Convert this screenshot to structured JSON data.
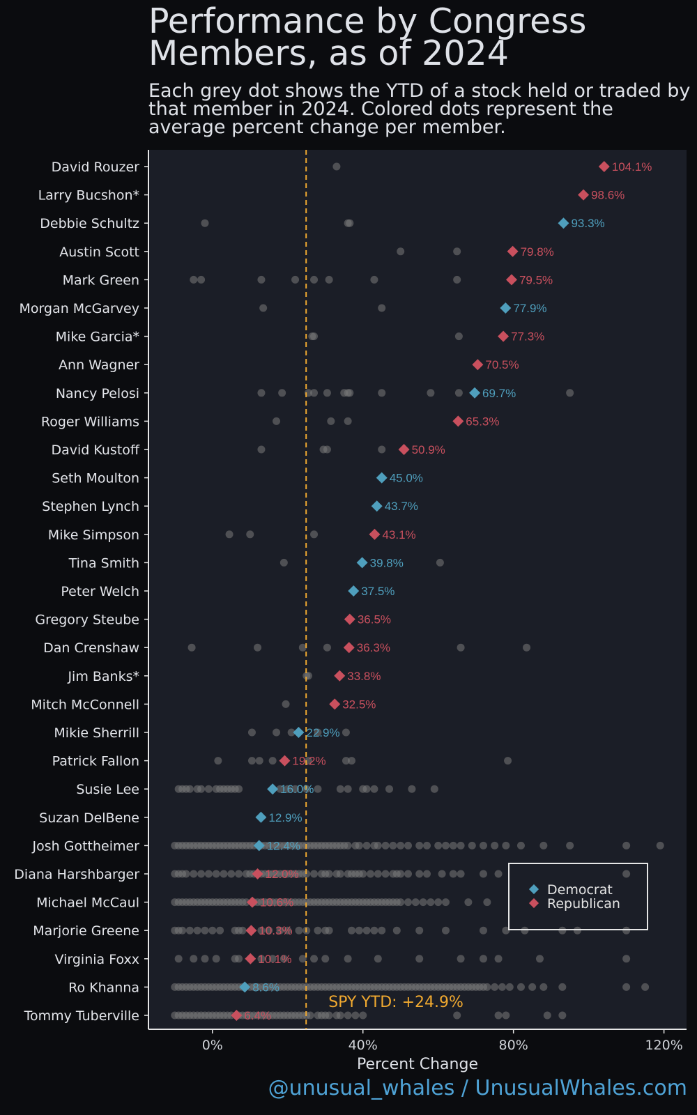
{
  "title": "Performance by Congress Members, as of 2024",
  "subtitle": "Each grey dot shows the YTD of a stock held or traded by that member in 2024. Colored dots represent the average percent change per member.",
  "footer": "@unusual_whales / UnusualWhales.com",
  "colors": {
    "democrat": "#4f9fbd",
    "republican": "#c9505e",
    "spy_line": "#f0a930",
    "stock_dot": "#7a7a7a",
    "panel": "#1b1e27",
    "background": "#0b0c0f"
  },
  "legend": {
    "items": [
      {
        "label": "Democrat",
        "color": "#4f9fbd"
      },
      {
        "label": "Republican",
        "color": "#c9505e"
      }
    ],
    "placement": "bottom-right"
  },
  "chart_data": {
    "type": "scatter",
    "xlabel": "Percent Change",
    "xlim": [
      -17,
      126
    ],
    "xticks": [
      0,
      40,
      80,
      120
    ],
    "xtick_labels": [
      "0%",
      "40%",
      "80%",
      "120%"
    ],
    "reference_line": {
      "value": 24.9,
      "label": "SPY YTD: +24.9%"
    },
    "members": [
      {
        "name": "David Rouzer",
        "party": "Republican",
        "avg": 104.1,
        "label": "104.1%",
        "stocks": [
          33
        ]
      },
      {
        "name": "Larry Bucshon*",
        "party": "Republican",
        "avg": 98.6,
        "label": "98.6%",
        "stocks": []
      },
      {
        "name": "Debbie Schultz",
        "party": "Democrat",
        "avg": 93.3,
        "label": "93.3%",
        "stocks": [
          -2,
          36,
          36.5
        ]
      },
      {
        "name": "Austin Scott",
        "party": "Republican",
        "avg": 79.8,
        "label": "79.8%",
        "stocks": [
          50,
          65
        ]
      },
      {
        "name": "Mark Green",
        "party": "Republican",
        "avg": 79.5,
        "label": "79.5%",
        "stocks": [
          -5,
          -3,
          13,
          22,
          27,
          31,
          43,
          65
        ]
      },
      {
        "name": "Morgan McGarvey",
        "party": "Democrat",
        "avg": 77.9,
        "label": "77.9%",
        "stocks": [
          13.5,
          45
        ]
      },
      {
        "name": "Mike Garcia*",
        "party": "Republican",
        "avg": 77.3,
        "label": "77.3%",
        "stocks": [
          26.5,
          27,
          65.5
        ]
      },
      {
        "name": "Ann Wagner",
        "party": "Republican",
        "avg": 70.5,
        "label": "70.5%",
        "stocks": []
      },
      {
        "name": "Nancy Pelosi",
        "party": "Democrat",
        "avg": 69.7,
        "label": "69.7%",
        "stocks": [
          13,
          18.5,
          25.5,
          27,
          30.5,
          35,
          36,
          36.5,
          45,
          58,
          65.5,
          95
        ]
      },
      {
        "name": "Roger Williams",
        "party": "Republican",
        "avg": 65.3,
        "label": "65.3%",
        "stocks": [
          17,
          31.5,
          36
        ]
      },
      {
        "name": "David Kustoff",
        "party": "Republican",
        "avg": 50.9,
        "label": "50.9%",
        "stocks": [
          13,
          29.5,
          30.5,
          45
        ]
      },
      {
        "name": "Seth Moulton",
        "party": "Democrat",
        "avg": 45.0,
        "label": "45.0%",
        "stocks": []
      },
      {
        "name": "Stephen Lynch",
        "party": "Democrat",
        "avg": 43.7,
        "label": "43.7%",
        "stocks": []
      },
      {
        "name": "Mike Simpson",
        "party": "Republican",
        "avg": 43.1,
        "label": "43.1%",
        "stocks": [
          4.5,
          10,
          27
        ]
      },
      {
        "name": "Tina Smith",
        "party": "Democrat",
        "avg": 39.8,
        "label": "39.8%",
        "stocks": [
          19,
          60.5
        ]
      },
      {
        "name": "Peter Welch",
        "party": "Democrat",
        "avg": 37.5,
        "label": "37.5%",
        "stocks": []
      },
      {
        "name": "Gregory Steube",
        "party": "Republican",
        "avg": 36.5,
        "label": "36.5%",
        "stocks": []
      },
      {
        "name": "Dan Crenshaw",
        "party": "Republican",
        "avg": 36.3,
        "label": "36.3%",
        "stocks": [
          -5.5,
          12,
          24,
          30.5,
          66,
          83.5
        ]
      },
      {
        "name": "Jim Banks*",
        "party": "Republican",
        "avg": 33.8,
        "label": "33.8%",
        "stocks": [
          25,
          25.5
        ]
      },
      {
        "name": "Mitch McConnell",
        "party": "Republican",
        "avg": 32.5,
        "label": "32.5%",
        "stocks": [
          19.5
        ]
      },
      {
        "name": "Mikie Sherrill",
        "party": "Democrat",
        "avg": 22.9,
        "label": "22.9%",
        "stocks": [
          10.5,
          17,
          21,
          28,
          35.5
        ]
      },
      {
        "name": "Patrick Fallon",
        "party": "Republican",
        "avg": 19.2,
        "label": "19.2%",
        "stocks": [
          1.5,
          10.5,
          12.5,
          16,
          25.5,
          35.5,
          37,
          78.5
        ]
      },
      {
        "name": "Susie Lee",
        "party": "Democrat",
        "avg": 16.0,
        "label": "16.0%",
        "stocks": [
          -9,
          -8,
          -7,
          -6,
          -4,
          -3,
          -1,
          1,
          2,
          3,
          4,
          5,
          6,
          7,
          16,
          18,
          20,
          22,
          25,
          28,
          34,
          36,
          40,
          41,
          43,
          47,
          53,
          59
        ]
      },
      {
        "name": "Suzan DelBene",
        "party": "Democrat",
        "avg": 12.9,
        "label": "12.9%",
        "stocks": []
      },
      {
        "name": "Josh Gottheimer",
        "party": "Democrat",
        "avg": 12.4,
        "label": "12.4%",
        "stocks": [
          -10,
          -9,
          -8,
          -7,
          -6,
          -5,
          -4,
          -3,
          -2,
          -1,
          0,
          1,
          2,
          3,
          4,
          5,
          6,
          7,
          8,
          9,
          10,
          11,
          13,
          14,
          15,
          16,
          17,
          18,
          19,
          20,
          21,
          22,
          23,
          24,
          25,
          26,
          27,
          28,
          29,
          30,
          31,
          32,
          33,
          34,
          35,
          36,
          38,
          39,
          41,
          43,
          44,
          46,
          48,
          50,
          52,
          55,
          57,
          60,
          62,
          64,
          66,
          69,
          72,
          75,
          78,
          82,
          88,
          95,
          110,
          119
        ]
      },
      {
        "name": "Diana Harshbarger",
        "party": "Republican",
        "avg": 12.0,
        "label": "12.0%",
        "stocks": [
          -10,
          -9,
          -8,
          -7,
          -5,
          -3,
          -1,
          1,
          3,
          5,
          7,
          9,
          10,
          11,
          13,
          14,
          15,
          16,
          17,
          18,
          19,
          20,
          21,
          22,
          23,
          24,
          25,
          27,
          29,
          30,
          31,
          33,
          34,
          36,
          37,
          38,
          39,
          40,
          42,
          44,
          46,
          48,
          49,
          50,
          52,
          55,
          57,
          61,
          64,
          66,
          72,
          76,
          110
        ]
      },
      {
        "name": "Michael McCaul",
        "party": "Republican",
        "avg": 10.6,
        "label": "10.6%",
        "stocks": [
          -10,
          -9,
          -8,
          -7,
          -6,
          -5,
          -4,
          -3,
          -2,
          -1,
          0,
          1,
          2,
          3,
          4,
          5,
          6,
          7,
          8,
          9,
          11,
          12,
          13,
          14,
          15,
          16,
          17,
          18,
          19,
          20,
          21,
          22,
          23,
          24,
          25,
          26,
          27,
          28,
          29,
          30,
          31,
          32,
          33,
          34,
          35,
          36,
          37,
          38,
          39,
          40,
          41,
          42,
          43,
          44,
          45,
          46,
          47,
          48,
          49,
          50,
          52,
          54,
          56,
          58,
          60,
          62,
          68,
          73
        ]
      },
      {
        "name": "Marjorie Greene",
        "party": "Republican",
        "avg": 10.3,
        "label": "10.3%",
        "stocks": [
          -10,
          -9,
          -8,
          -6,
          -4,
          -2,
          0,
          2,
          6,
          7,
          8,
          13,
          15,
          18,
          20,
          23,
          25,
          28,
          30,
          31,
          37,
          39,
          41,
          43,
          45,
          49,
          55,
          62,
          72,
          78,
          83,
          93,
          97,
          110
        ]
      },
      {
        "name": "Virginia Foxx",
        "party": "Republican",
        "avg": 10.1,
        "label": "10.1%",
        "stocks": [
          -9,
          -5,
          -2,
          1,
          6,
          7,
          13,
          16,
          19,
          24,
          27,
          30,
          36,
          44,
          55,
          66,
          72,
          76,
          87,
          110
        ]
      },
      {
        "name": "Ro Khanna",
        "party": "Democrat",
        "avg": 8.6,
        "label": "8.6%",
        "stocks": [
          -10,
          -9,
          -8,
          -7,
          -6,
          -5,
          -4,
          -3,
          -2,
          -1,
          0,
          1,
          2,
          3,
          4,
          5,
          6,
          7,
          8,
          10,
          11,
          12,
          13,
          14,
          15,
          16,
          17,
          18,
          19,
          20,
          21,
          22,
          23,
          24,
          25,
          26,
          27,
          28,
          29,
          30,
          31,
          32,
          33,
          34,
          35,
          36,
          37,
          38,
          39,
          40,
          41,
          42,
          43,
          44,
          45,
          46,
          47,
          48,
          49,
          50,
          51,
          52,
          53,
          54,
          55,
          56,
          57,
          58,
          59,
          60,
          61,
          62,
          63,
          64,
          65,
          66,
          67,
          68,
          69,
          70,
          71,
          72,
          73,
          75,
          77,
          79,
          82,
          85,
          88,
          93,
          110,
          115
        ]
      },
      {
        "name": "Tommy Tuberville",
        "party": "Republican",
        "avg": 6.4,
        "label": "6.4%",
        "stocks": [
          -10,
          -9,
          -8,
          -7,
          -6,
          -5,
          -4,
          -3,
          -2,
          -1,
          0,
          1,
          2,
          3,
          4,
          5,
          7,
          8,
          9,
          10,
          11,
          12,
          13,
          14,
          15,
          16,
          17,
          18,
          19,
          20,
          21,
          22,
          23,
          24,
          25,
          26,
          28,
          29,
          30,
          31,
          33,
          34,
          36,
          38,
          40,
          65,
          76,
          78,
          89,
          93
        ]
      }
    ]
  }
}
